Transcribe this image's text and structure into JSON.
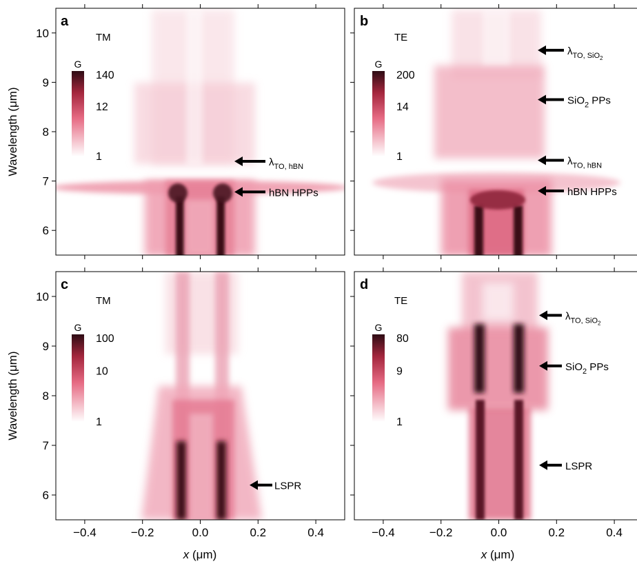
{
  "figure": {
    "axis_labels": {
      "y_left_top": "Wavelength (μm)",
      "y_left_bottom": "Wavelength (μm)",
      "x_left": "x (μm)",
      "x_right": "x (μm)",
      "x_unit": "(μm)",
      "x_var": "x"
    }
  },
  "chart_data": [
    {
      "panel": "a",
      "type": "heatmap",
      "polarization": "TM",
      "xlim": [
        -0.5,
        0.5
      ],
      "ylim": [
        5.5,
        10.5
      ],
      "x_ticks": [
        "-0.4",
        "-0.2",
        "0.0",
        "0.2",
        "0.4"
      ],
      "y_ticks": [
        "6",
        "7",
        "8",
        "9",
        "10"
      ],
      "colorbar": {
        "label": "G",
        "ticks": [
          "140",
          "12",
          "1"
        ],
        "colors": [
          "#3a0f18",
          "#e35d78",
          "#ffffff"
        ]
      },
      "annotations": [
        {
          "html": "λ<tspan baseline-shift='sub' font-size='11'>TO, hBN</tspan>",
          "text": "λTO, hBN",
          "wavelength": 7.4
        },
        {
          "text": "hBN HPPs",
          "wavelength": 6.78
        }
      ]
    },
    {
      "panel": "b",
      "type": "heatmap",
      "polarization": "TE",
      "xlim": [
        -0.5,
        0.5
      ],
      "ylim": [
        5.5,
        10.5
      ],
      "x_ticks": [
        "-0.4",
        "-0.2",
        "0.0",
        "0.2",
        "0.4"
      ],
      "y_ticks": [
        "6",
        "7",
        "8",
        "9",
        "10"
      ],
      "colorbar": {
        "label": "G",
        "ticks": [
          "200",
          "14",
          "1"
        ],
        "colors": [
          "#3a0f18",
          "#e35d78",
          "#ffffff"
        ]
      },
      "annotations": [
        {
          "text": "λTO, SiO2",
          "wavelength": 9.65
        },
        {
          "text": "SiO2 PPs",
          "wavelength": 8.65
        },
        {
          "text": "λTO, hBN",
          "wavelength": 7.42
        },
        {
          "text": "hBN HPPs",
          "wavelength": 6.8
        }
      ]
    },
    {
      "panel": "c",
      "type": "heatmap",
      "polarization": "TM",
      "xlim": [
        -0.5,
        0.5
      ],
      "ylim": [
        5.5,
        10.5
      ],
      "x_ticks": [
        "-0.4",
        "-0.2",
        "0.0",
        "0.2",
        "0.4"
      ],
      "y_ticks": [
        "6",
        "7",
        "8",
        "9",
        "10"
      ],
      "colorbar": {
        "label": "G",
        "ticks": [
          "100",
          "10",
          "1"
        ],
        "colors": [
          "#3a0f18",
          "#e35d78",
          "#ffffff"
        ]
      },
      "annotations": [
        {
          "text": "LSPR",
          "wavelength": 6.2
        }
      ]
    },
    {
      "panel": "d",
      "type": "heatmap",
      "polarization": "TE",
      "xlim": [
        -0.5,
        0.5
      ],
      "ylim": [
        5.5,
        10.5
      ],
      "x_ticks": [
        "-0.4",
        "-0.2",
        "0.0",
        "0.2",
        "0.4"
      ],
      "y_ticks": [
        "6",
        "7",
        "8",
        "9",
        "10"
      ],
      "colorbar": {
        "label": "G",
        "ticks": [
          "80",
          "9",
          "1"
        ],
        "colors": [
          "#3a0f18",
          "#e35d78",
          "#ffffff"
        ]
      },
      "annotations": [
        {
          "text": "λTO, SiO2",
          "wavelength": 9.62
        },
        {
          "text": "SiO2 PPs",
          "wavelength": 8.6
        },
        {
          "text": "LSPR",
          "wavelength": 6.6
        }
      ]
    }
  ]
}
